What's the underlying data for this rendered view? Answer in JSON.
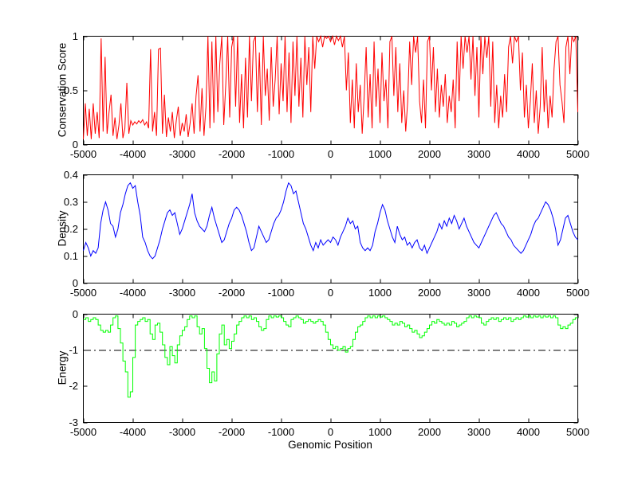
{
  "figure": {
    "background": "#ffffff",
    "axis_color": "#000000"
  },
  "xlabel": "Genomic Position",
  "xtick_labels": [
    "-5000",
    "-4000",
    "-3000",
    "-2000",
    "-1000",
    "0",
    "1000",
    "2000",
    "3000",
    "4000",
    "5000"
  ],
  "chart_data": [
    {
      "type": "line",
      "name": "conservation-score",
      "ylabel": "Conservation Score",
      "line_color": "#ff0000",
      "grid": false,
      "xlim": [
        -5000,
        5000
      ],
      "ylim": [
        0,
        1
      ],
      "xticks": [
        -5000,
        -4000,
        -3000,
        -2000,
        -1000,
        0,
        1000,
        2000,
        3000,
        4000,
        5000
      ],
      "yticks": [
        0,
        0.5,
        1
      ],
      "ytick_labels": [
        "0",
        "0.5",
        "1"
      ],
      "x_start": -5000,
      "x_step": 40,
      "values": [
        0.05,
        0.38,
        0.08,
        0.33,
        0.05,
        0.38,
        0.1,
        0.3,
        0.06,
        0.98,
        0.12,
        0.81,
        0.1,
        0.3,
        0.46,
        0.08,
        0.25,
        0.05,
        0.18,
        0.38,
        0.06,
        0.15,
        0.57,
        0.1,
        0.22,
        0.18,
        0.21,
        0.19,
        0.22,
        0.2,
        0.23,
        0.18,
        0.21,
        0.15,
        0.88,
        0.12,
        0.3,
        0.08,
        0.88,
        0.89,
        0.1,
        0.46,
        0.07,
        0.25,
        0.12,
        0.3,
        0.06,
        0.22,
        0.35,
        0.08,
        0.2,
        0.12,
        0.28,
        0.07,
        0.2,
        0.38,
        0.1,
        0.45,
        0.64,
        0.12,
        0.52,
        0.08,
        0.35,
        1.0,
        0.15,
        0.95,
        0.2,
        1.0,
        0.3,
        0.75,
        1.0,
        0.18,
        0.55,
        1.0,
        0.25,
        0.9,
        1.0,
        0.35,
        1.0,
        0.2,
        0.65,
        0.15,
        0.8,
        0.25,
        1.0,
        0.4,
        0.95,
        1.0,
        0.3,
        0.85,
        0.18,
        1.0,
        0.45,
        0.7,
        0.22,
        0.9,
        0.35,
        0.6,
        1.0,
        0.28,
        0.75,
        0.4,
        1.0,
        0.3,
        0.85,
        0.2,
        0.95,
        0.45,
        1.0,
        0.35,
        0.8,
        0.25,
        1.0,
        0.55,
        0.9,
        0.3,
        1.0,
        0.7,
        1.0,
        0.95,
        1.0,
        0.9,
        1.0,
        0.98,
        1.0,
        0.95,
        1.0,
        0.92,
        1.0,
        0.96,
        1.0,
        0.9,
        1.0,
        0.5,
        0.85,
        0.2,
        0.6,
        0.15,
        0.75,
        0.3,
        0.55,
        0.1,
        0.45,
        0.9,
        0.25,
        0.65,
        0.15,
        0.95,
        0.35,
        0.7,
        0.2,
        0.85,
        0.4,
        0.6,
        0.15,
        0.95,
        1.0,
        0.45,
        0.9,
        0.3,
        0.75,
        0.2,
        0.5,
        0.12,
        0.4,
        0.95,
        0.55,
        1.0,
        0.85,
        1.0,
        0.4,
        0.2,
        0.6,
        0.15,
        0.95,
        1.0,
        0.5,
        0.9,
        0.3,
        0.7,
        0.25,
        0.55,
        0.35,
        0.65,
        0.2,
        0.45,
        0.3,
        0.6,
        0.15,
        0.95,
        0.4,
        1.0,
        0.7,
        1.0,
        0.85,
        1.0,
        0.6,
        1.0,
        0.45,
        0.9,
        0.25,
        1.0,
        0.65,
        1.0,
        0.8,
        1.0,
        0.35,
        0.95,
        0.2,
        0.55,
        0.15,
        0.45,
        0.25,
        0.65,
        0.3,
        0.9,
        1.0,
        0.75,
        1.0,
        0.95,
        1.0,
        0.5,
        0.85,
        0.25,
        0.55,
        0.15,
        0.4,
        0.75,
        0.2,
        0.5,
        0.1,
        0.35,
        0.9,
        0.3,
        0.6,
        0.15,
        0.45,
        0.25,
        0.7,
        0.95,
        1.0,
        0.55,
        0.4,
        0.2,
        0.9,
        1.0,
        0.65,
        1.0,
        0.95,
        1.0,
        0.3
      ]
    },
    {
      "type": "line",
      "name": "density",
      "ylabel": "Density",
      "line_color": "#0000ff",
      "grid": false,
      "xlim": [
        -5000,
        5000
      ],
      "ylim": [
        0,
        0.4
      ],
      "xticks": [
        -5000,
        -4000,
        -3000,
        -2000,
        -1000,
        0,
        1000,
        2000,
        3000,
        4000,
        5000
      ],
      "yticks": [
        0,
        0.1,
        0.2,
        0.3,
        0.4
      ],
      "ytick_labels": [
        "0",
        "0.1",
        "0.2",
        "0.3",
        "0.4"
      ],
      "x_start": -5000,
      "x_step": 50,
      "values": [
        0.12,
        0.15,
        0.13,
        0.1,
        0.12,
        0.11,
        0.13,
        0.22,
        0.27,
        0.3,
        0.27,
        0.22,
        0.21,
        0.17,
        0.2,
        0.26,
        0.29,
        0.33,
        0.36,
        0.37,
        0.35,
        0.36,
        0.3,
        0.25,
        0.17,
        0.15,
        0.12,
        0.1,
        0.09,
        0.1,
        0.13,
        0.16,
        0.2,
        0.23,
        0.26,
        0.27,
        0.25,
        0.26,
        0.22,
        0.18,
        0.2,
        0.23,
        0.26,
        0.29,
        0.33,
        0.26,
        0.23,
        0.21,
        0.2,
        0.19,
        0.21,
        0.25,
        0.28,
        0.24,
        0.21,
        0.18,
        0.15,
        0.16,
        0.19,
        0.22,
        0.24,
        0.27,
        0.28,
        0.27,
        0.25,
        0.22,
        0.19,
        0.15,
        0.12,
        0.13,
        0.17,
        0.21,
        0.19,
        0.17,
        0.15,
        0.16,
        0.19,
        0.22,
        0.24,
        0.25,
        0.27,
        0.3,
        0.34,
        0.37,
        0.36,
        0.33,
        0.34,
        0.3,
        0.26,
        0.22,
        0.2,
        0.17,
        0.14,
        0.12,
        0.15,
        0.13,
        0.16,
        0.14,
        0.15,
        0.16,
        0.15,
        0.17,
        0.16,
        0.14,
        0.17,
        0.19,
        0.21,
        0.24,
        0.22,
        0.23,
        0.2,
        0.21,
        0.15,
        0.13,
        0.12,
        0.13,
        0.12,
        0.14,
        0.19,
        0.22,
        0.26,
        0.29,
        0.27,
        0.23,
        0.2,
        0.17,
        0.15,
        0.21,
        0.18,
        0.16,
        0.17,
        0.14,
        0.15,
        0.13,
        0.15,
        0.16,
        0.13,
        0.12,
        0.14,
        0.11,
        0.13,
        0.15,
        0.17,
        0.19,
        0.22,
        0.2,
        0.23,
        0.21,
        0.24,
        0.22,
        0.25,
        0.23,
        0.2,
        0.22,
        0.24,
        0.21,
        0.19,
        0.17,
        0.15,
        0.14,
        0.13,
        0.15,
        0.17,
        0.19,
        0.21,
        0.23,
        0.25,
        0.26,
        0.24,
        0.22,
        0.21,
        0.19,
        0.17,
        0.16,
        0.14,
        0.13,
        0.12,
        0.11,
        0.12,
        0.14,
        0.16,
        0.18,
        0.21,
        0.23,
        0.24,
        0.26,
        0.28,
        0.3,
        0.29,
        0.27,
        0.24,
        0.2,
        0.14,
        0.16,
        0.2,
        0.24,
        0.25,
        0.22,
        0.19,
        0.17,
        0.16
      ]
    },
    {
      "type": "line",
      "draw_style": "stairs",
      "name": "energy",
      "ylabel": "Energy",
      "line_color": "#00ff00",
      "grid": false,
      "xlim": [
        -5000,
        5000
      ],
      "ylim": [
        -3,
        0
      ],
      "xticks": [
        -5000,
        -4000,
        -3000,
        -2000,
        -1000,
        0,
        1000,
        2000,
        3000,
        4000,
        5000
      ],
      "yticks": [
        -3,
        -2,
        -1,
        0
      ],
      "ytick_labels": [
        "-3",
        "-2",
        "-1",
        "0"
      ],
      "ref_line": {
        "y": -1,
        "color": "#000000",
        "style": "dash-dot"
      },
      "x_start": -5000,
      "x_step": 50,
      "values": [
        -0.15,
        -0.1,
        -0.2,
        -0.15,
        -0.1,
        -0.15,
        -0.3,
        -0.45,
        -0.5,
        -0.45,
        -0.5,
        -0.3,
        -0.1,
        -0.05,
        -0.4,
        -0.8,
        -1.3,
        -1.6,
        -2.3,
        -2.15,
        -1.2,
        -0.3,
        -0.2,
        -0.15,
        -0.1,
        -0.2,
        -0.15,
        -0.55,
        -0.7,
        -0.3,
        -0.25,
        -0.5,
        -0.85,
        -1.2,
        -1.4,
        -0.9,
        -1.15,
        -1.35,
        -0.85,
        -0.6,
        -0.45,
        -0.35,
        -0.15,
        -0.05,
        -0.1,
        -0.05,
        -0.35,
        -0.55,
        -0.4,
        -0.95,
        -1.5,
        -1.9,
        -1.6,
        -1.85,
        -1.1,
        -0.55,
        -0.3,
        -0.85,
        -0.7,
        -0.95,
        -0.75,
        -0.55,
        -0.3,
        -0.2,
        -0.1,
        -0.05,
        -0.1,
        -0.05,
        -0.15,
        -0.1,
        -0.2,
        -0.35,
        -0.45,
        -0.4,
        -0.15,
        -0.05,
        -0.1,
        -0.05,
        -0.08,
        -0.05,
        -0.1,
        -0.2,
        -0.3,
        -0.35,
        -0.15,
        -0.1,
        -0.05,
        -0.1,
        -0.15,
        -0.25,
        -0.2,
        -0.15,
        -0.2,
        -0.25,
        -0.2,
        -0.15,
        -0.2,
        -0.3,
        -0.5,
        -0.7,
        -0.85,
        -0.95,
        -0.9,
        -1.0,
        -0.95,
        -0.9,
        -1.05,
        -0.95,
        -0.9,
        -0.7,
        -0.5,
        -0.35,
        -0.3,
        -0.2,
        -0.1,
        -0.05,
        -0.1,
        -0.05,
        -0.1,
        -0.05,
        -0.08,
        -0.05,
        -0.1,
        -0.15,
        -0.2,
        -0.3,
        -0.25,
        -0.3,
        -0.2,
        -0.25,
        -0.35,
        -0.3,
        -0.4,
        -0.5,
        -0.45,
        -0.55,
        -0.65,
        -0.6,
        -0.5,
        -0.4,
        -0.3,
        -0.2,
        -0.25,
        -0.15,
        -0.2,
        -0.25,
        -0.3,
        -0.25,
        -0.3,
        -0.2,
        -0.25,
        -0.35,
        -0.3,
        -0.25,
        -0.2,
        -0.1,
        -0.05,
        -0.1,
        -0.05,
        -0.08,
        -0.1,
        -0.25,
        -0.3,
        -0.2,
        -0.15,
        -0.1,
        -0.15,
        -0.1,
        -0.2,
        -0.15,
        -0.1,
        -0.15,
        -0.1,
        -0.2,
        -0.15,
        -0.1,
        -0.15,
        -0.1,
        -0.05,
        -0.08,
        -0.05,
        -0.1,
        -0.05,
        -0.08,
        -0.05,
        -0.1,
        -0.05,
        -0.08,
        -0.05,
        -0.1,
        -0.05,
        -0.1,
        -0.3,
        -0.4,
        -0.35,
        -0.4,
        -0.3,
        -0.25,
        -0.15,
        -0.1,
        -0.1
      ]
    }
  ]
}
